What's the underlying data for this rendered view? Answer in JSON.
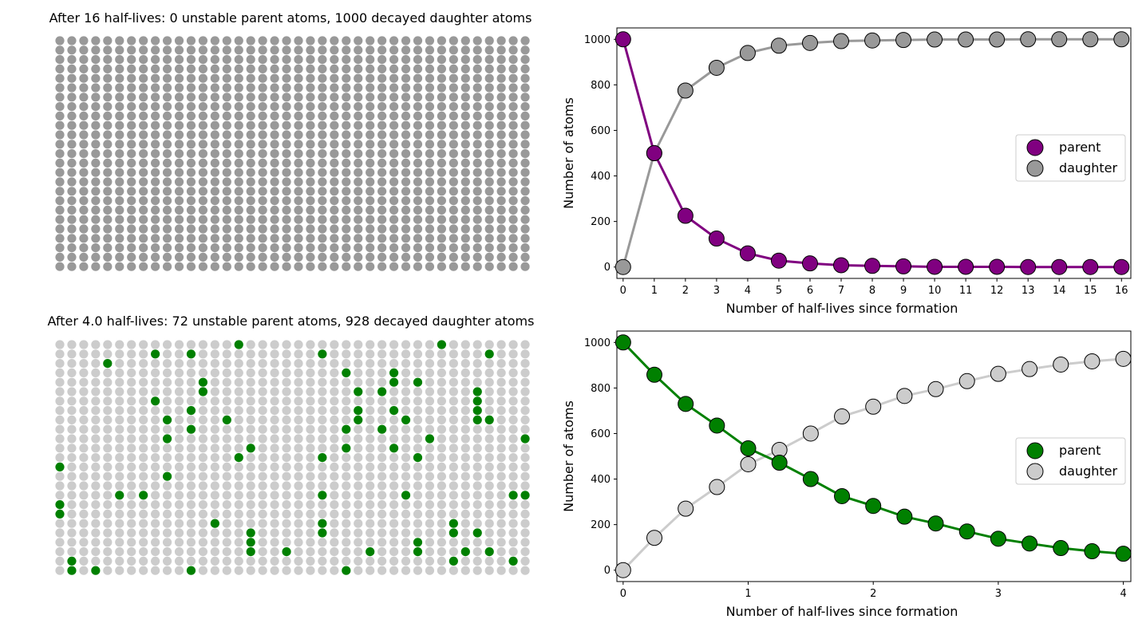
{
  "panels": {
    "top_grid": {
      "title": "After 16 half-lives: 0 unstable parent atoms, 1000 decayed daughter atoms",
      "parent_count": 0,
      "daughter_count": 1000
    },
    "bottom_grid": {
      "title": "After 4.0 half-lives: 72 unstable parent atoms, 928 decayed daughter atoms",
      "parent_count": 72,
      "daughter_count": 928
    }
  },
  "chart_data": [
    {
      "type": "line",
      "title": "",
      "xlabel": "Number of half-lives since formation",
      "ylabel": "Number of atoms",
      "xlim": [
        -0.2,
        16.3
      ],
      "ylim": [
        -50,
        1050
      ],
      "xticks": [
        0,
        1,
        2,
        3,
        4,
        5,
        6,
        7,
        8,
        9,
        10,
        11,
        12,
        13,
        14,
        15,
        16
      ],
      "yticks": [
        0,
        200,
        400,
        600,
        800,
        1000
      ],
      "grid": false,
      "legend_position": "center-right",
      "x": [
        0,
        1,
        2,
        3,
        4,
        5,
        6,
        7,
        8,
        9,
        10,
        11,
        12,
        13,
        14,
        15,
        16
      ],
      "series": [
        {
          "name": "parent",
          "color": "#800080",
          "values": [
            1000,
            500,
            225,
            125,
            60,
            28,
            16,
            8,
            5,
            3,
            1,
            1,
            1,
            0,
            0,
            0,
            0
          ]
        },
        {
          "name": "daughter",
          "color": "#999999",
          "values": [
            0,
            500,
            775,
            875,
            940,
            972,
            984,
            992,
            995,
            997,
            999,
            999,
            999,
            1000,
            1000,
            1000,
            1000
          ]
        }
      ]
    },
    {
      "type": "line",
      "title": "",
      "xlabel": "Number of half-lives since formation",
      "ylabel": "Number of atoms",
      "xlim": [
        -0.05,
        4.06
      ],
      "ylim": [
        -50,
        1050
      ],
      "xticks": [
        0,
        1,
        2,
        3,
        4
      ],
      "yticks": [
        0,
        200,
        400,
        600,
        800,
        1000
      ],
      "grid": false,
      "legend_position": "center-right",
      "x": [
        0,
        0.25,
        0.5,
        0.75,
        1,
        1.25,
        1.5,
        1.75,
        2,
        2.25,
        2.5,
        2.75,
        3,
        3.25,
        3.5,
        3.75,
        4
      ],
      "series": [
        {
          "name": "parent",
          "color": "#008000",
          "values": [
            1000,
            858,
            730,
            635,
            535,
            472,
            400,
            325,
            282,
            235,
            205,
            170,
            138,
            117,
            97,
            83,
            72
          ]
        },
        {
          "name": "daughter",
          "color": "#cccccc",
          "values": [
            0,
            142,
            270,
            365,
            465,
            528,
            600,
            675,
            718,
            765,
            795,
            830,
            862,
            883,
            903,
            917,
            928
          ]
        }
      ]
    }
  ],
  "colors": {
    "top_parent": "#800080",
    "top_daughter": "#999999",
    "bottom_parent": "#008000",
    "bottom_daughter": "#cccccc"
  }
}
